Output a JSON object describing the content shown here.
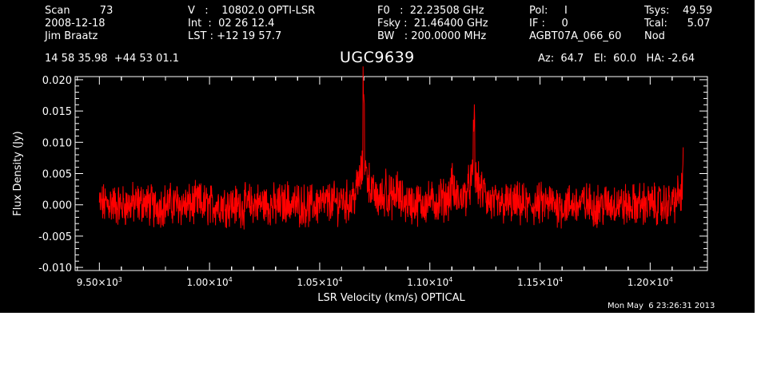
{
  "header": {
    "col1": {
      "scan": "Scan         73",
      "date": "2008-12-18",
      "observer": "Jim Braatz"
    },
    "col2": {
      "v": "V   :    10802.0 OPTI-LSR",
      "int": "Int  :  02 26 12.4",
      "lst": "LST : +12 19 57.7"
    },
    "col3": {
      "f0": "F0   :  22.23508 GHz",
      "fsky": "Fsky :  21.46400 GHz",
      "bw": "BW   : 200.0000 MHz"
    },
    "col4": {
      "pol": "Pol:     I",
      "if": "IF :     0",
      "project": "AGBT07A_066_60"
    },
    "col5": {
      "tsys": "Tsys:    49.59",
      "tcal": "Tcal:      5.07",
      "mode": "Nod"
    },
    "coords": "14 58 35.98  +44 53 01.1",
    "source": "UGC9639",
    "azel": "Az:  64.7   El:  60.0   HA: -2.64"
  },
  "footer": {
    "timestamp": "Mon May  6 23:26:31 2013"
  },
  "colors": {
    "background": "#000000",
    "foreground": "#ffffff",
    "trace": "#ff0000"
  },
  "chart_data": {
    "type": "line",
    "title": "UGC9639",
    "xlabel": "LSR Velocity (km/s) OPTICAL",
    "ylabel": "Flux Density (Jy)",
    "xlim": [
      9390,
      12260
    ],
    "ylim": [
      -0.0105,
      0.0205
    ],
    "xticks": [
      9500,
      10000,
      10500,
      11000,
      11500,
      12000
    ],
    "xticklabels": [
      {
        "mant": "9.50×10",
        "exp": "3"
      },
      {
        "mant": "1.00×10",
        "exp": "4"
      },
      {
        "mant": "1.05×10",
        "exp": "4"
      },
      {
        "mant": "1.10×10",
        "exp": "4"
      },
      {
        "mant": "1.15×10",
        "exp": "4"
      },
      {
        "mant": "1.20×10",
        "exp": "4"
      }
    ],
    "yticks": [
      -0.01,
      -0.005,
      0.0,
      0.005,
      0.01,
      0.015,
      0.02
    ],
    "yticklabels": [
      "-0.010",
      "-0.005",
      "0.000",
      "0.005",
      "0.010",
      "0.015",
      "0.020"
    ],
    "series": [
      {
        "color": "#ff0000",
        "x": [
          9500,
          9550,
          9600,
          9650,
          9700,
          9750,
          9800,
          9850,
          9900,
          9950,
          10000,
          10050,
          10100,
          10150,
          10200,
          10250,
          10300,
          10350,
          10400,
          10450,
          10500,
          10550,
          10600,
          10650,
          10700,
          10750,
          10800,
          10850,
          10900,
          10950,
          11000,
          11050,
          11100,
          11150,
          11200,
          11250,
          11300,
          11350,
          11400,
          11450,
          11500,
          11550,
          11600,
          11650,
          11700,
          11750,
          11800,
          11850,
          11900,
          11950,
          12000,
          12050,
          12100,
          12150
        ],
        "y": [
          0.0,
          0.0005,
          -0.0004,
          0.0002,
          0.0008,
          -0.0006,
          0.0001,
          0.0004,
          -0.0003,
          0.0006,
          -0.0002,
          0.0003,
          0.0,
          -0.0005,
          0.0004,
          0.0002,
          -0.0003,
          0.0007,
          0.0001,
          -0.0004,
          0.0005,
          0.0009,
          0.0012,
          0.0015,
          0.0185,
          0.002,
          0.004,
          0.003,
          0.0006,
          0.0004,
          0.001,
          0.0015,
          0.0045,
          0.002,
          0.0135,
          0.003,
          -0.0002,
          0.0003,
          0.0001,
          -0.0004,
          0.0002,
          0.0005,
          -0.0003,
          0.0001,
          0.0004,
          -0.0002,
          0.0,
          0.0006,
          -0.0005,
          0.0002,
          0.0003,
          -0.0001,
          0.0004,
          0.0065
        ]
      }
    ],
    "grid": false,
    "legend": "none"
  }
}
